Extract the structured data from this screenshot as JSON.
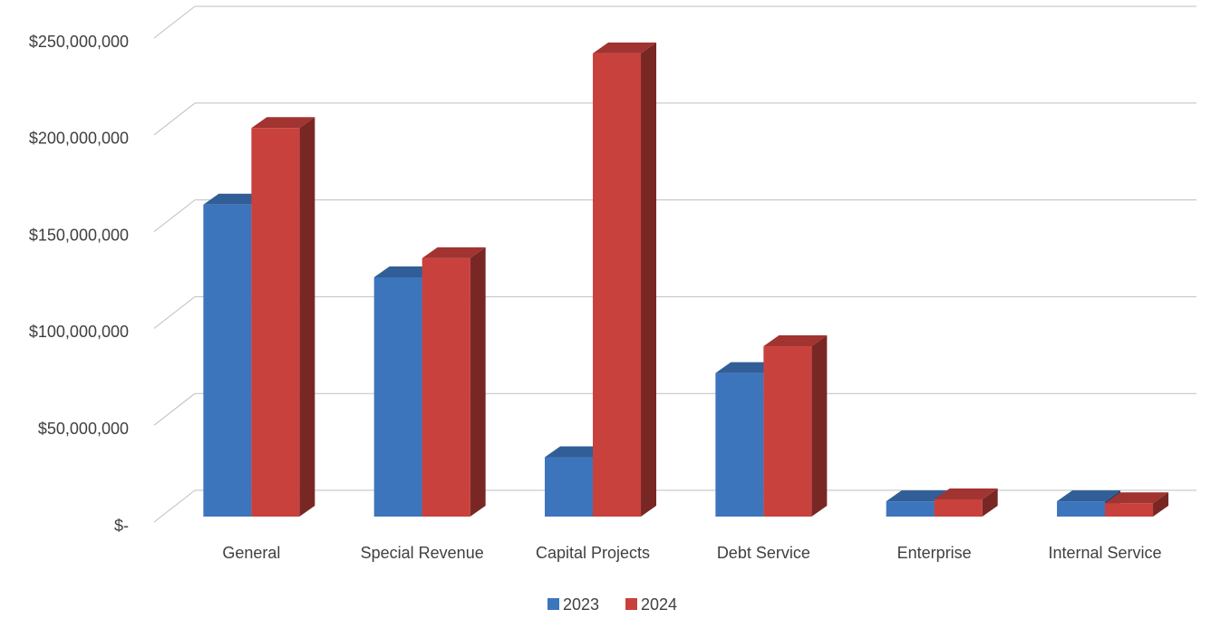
{
  "chart_data": {
    "type": "bar3d",
    "categories": [
      "General",
      "Special Revenue",
      "Capital Projects",
      "Debt Service",
      "Enterprise",
      "Internal Service"
    ],
    "series": [
      {
        "name": "2023",
        "color": "#3d75bd",
        "values": [
          163000000,
          125000000,
          31000000,
          75000000,
          8000000,
          8000000
        ]
      },
      {
        "name": "2024",
        "color": "#c9413d",
        "values": [
          203000000,
          135000000,
          242000000,
          89000000,
          9000000,
          7000000
        ]
      }
    ],
    "ylim": [
      0,
      250000000
    ],
    "yticks": [
      {
        "value": 0,
        "label": "$-"
      },
      {
        "value": 50000000,
        "label": "$50,000,000"
      },
      {
        "value": 100000000,
        "label": "$100,000,000"
      },
      {
        "value": 150000000,
        "label": "$150,000,000"
      },
      {
        "value": 200000000,
        "label": "$200,000,000"
      },
      {
        "value": 250000000,
        "label": "$250,000,000"
      }
    ],
    "grid": true,
    "legend": "bottom"
  }
}
